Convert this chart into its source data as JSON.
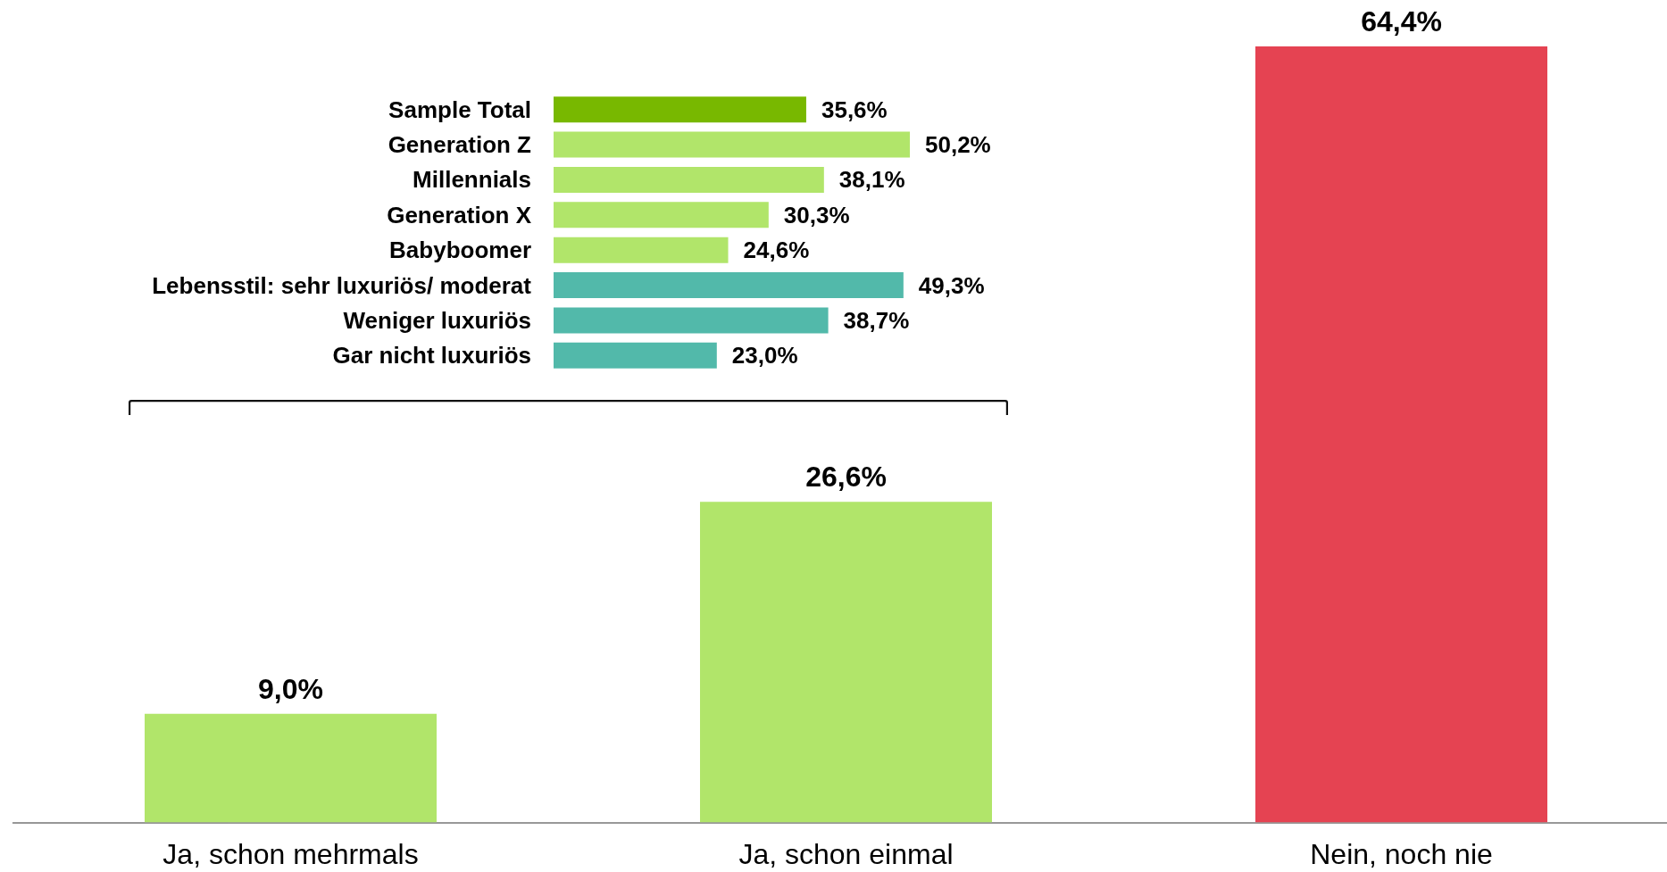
{
  "chart_data": [
    {
      "type": "bar",
      "categories": [
        "Ja, schon mehrmals",
        "Ja, schon einmal",
        "Nein, noch nie"
      ],
      "values": [
        9.0,
        26.6,
        64.4
      ],
      "colors": [
        "#b1e56a",
        "#b1e56a",
        "#e54352"
      ],
      "value_labels": [
        "9,0%",
        "26,6%",
        "64,4%"
      ],
      "tick_labels": "x"
    },
    {
      "type": "bar",
      "orientation": "horizontal",
      "categories": [
        "Sample Total",
        "Generation Z",
        "Millennials",
        "Generation X",
        "Babyboomer",
        "Lebensstil: sehr luxuriös/ moderat",
        "Weniger luxuriös",
        "Gar nicht luxuriös"
      ],
      "values": [
        35.6,
        50.2,
        38.1,
        30.3,
        24.6,
        49.3,
        38.7,
        23.0
      ],
      "colors": [
        "#78b800",
        "#b1e56a",
        "#b1e56a",
        "#b1e56a",
        "#b1e56a",
        "#52b9aa",
        "#52b9aa",
        "#52b9aa"
      ],
      "value_labels": [
        "35,6%",
        "50,2%",
        "38,1%",
        "30,3%",
        "24,6%",
        "49,3%",
        "38,7%",
        "23,0%"
      ],
      "tick_labels": "y"
    }
  ]
}
